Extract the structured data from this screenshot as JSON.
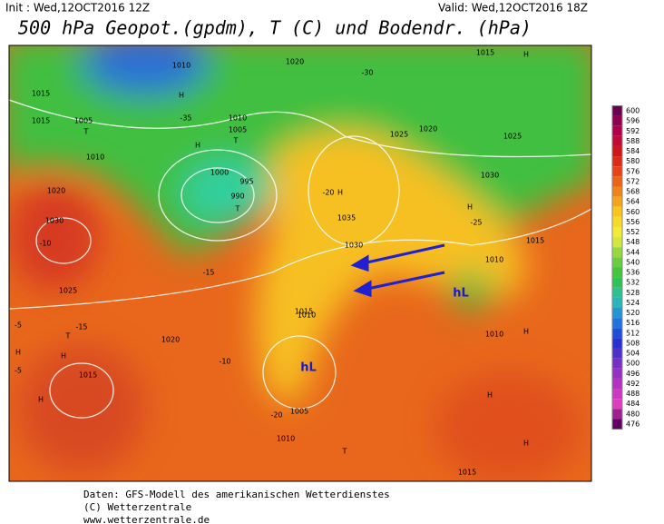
{
  "header": {
    "init": "Init : Wed,12OCT2016 12Z",
    "valid": "Valid: Wed,12OCT2016 18Z",
    "title": "500 hPa Geopot.(gpdm), T (C) und Bodendr. (hPa)"
  },
  "map": {
    "labels": [
      "1015",
      "1010",
      "1020",
      "1015",
      "1010",
      "1005",
      "T",
      "H",
      "H",
      "1010",
      "1005",
      "T",
      "1000",
      "990",
      "995",
      "T",
      "1020",
      "1030",
      "1025",
      "H",
      "1035",
      "1030",
      "H",
      "H",
      "1010",
      "1025",
      "1020",
      "hL",
      "hL",
      "1010",
      "1015",
      "1005",
      "1010",
      "1020",
      "1015",
      "H",
      "T",
      "H",
      "H",
      "H",
      "T",
      "H",
      "H",
      "1015",
      "1015",
      "1030",
      "1025",
      "1010",
      "1015",
      "-5",
      "-10",
      "-15",
      "-20",
      "-25",
      "-30",
      "-35",
      "-10",
      "-15",
      "-20",
      "-5"
    ]
  },
  "colorbar": {
    "ticks": [
      600,
      596,
      592,
      588,
      584,
      580,
      576,
      572,
      568,
      564,
      560,
      556,
      552,
      548,
      544,
      540,
      536,
      532,
      528,
      524,
      520,
      516,
      512,
      508,
      504,
      500,
      496,
      492,
      488,
      484,
      480,
      476
    ]
  },
  "footer": {
    "lines": [
      "Daten: GFS-Modell des amerikanischen Wetterdienstes",
      "(C) Wetterzentrale",
      "www.wetterzentrale.de"
    ]
  }
}
